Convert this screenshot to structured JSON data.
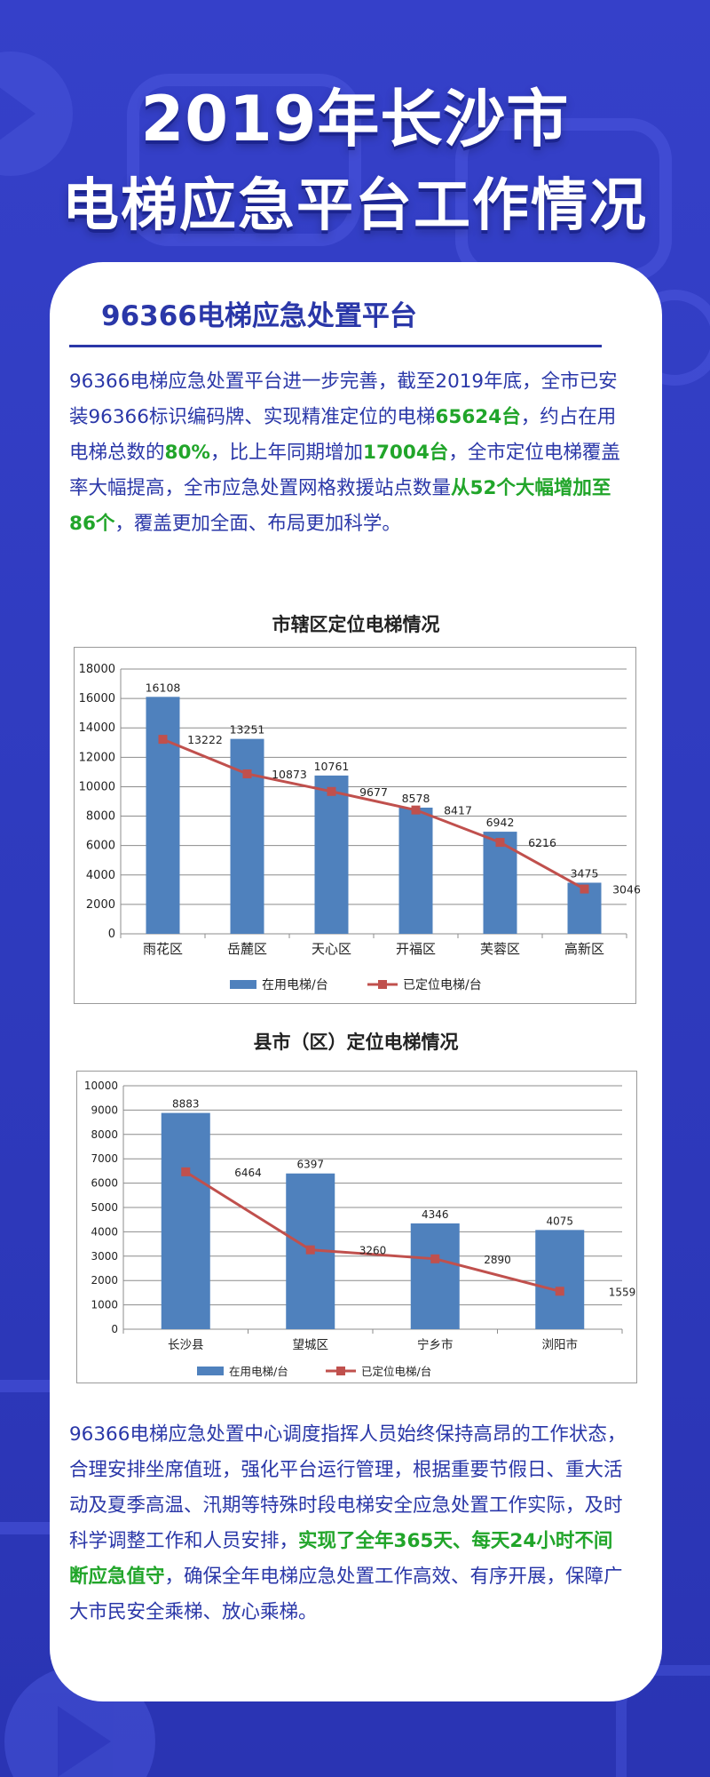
{
  "header": {
    "line1": "2019年长沙市",
    "line2": "电梯应急平台工作情况"
  },
  "section": {
    "title": "96366电梯应急处置平台"
  },
  "intro": {
    "p1": "96366电梯应急处置平台进一步完善，截至2019年底，全市已安装96366标识编码牌、实现精准定位的电梯",
    "h1": "65624台",
    "p2": "，约占在用电梯总数的",
    "h2": "80%",
    "p3": "，比上年同期增加",
    "h3": "17004台",
    "p4": "，全市定位电梯覆盖率大幅提高，全市应急处置网格救援站点数量",
    "h4": "从52个大幅增加至86个",
    "p5": "，覆盖更加全面、布局更加科学。"
  },
  "chart_data": [
    {
      "type": "bar",
      "title": "市辖区定位电梯情况",
      "categories": [
        "雨花区",
        "岳麓区",
        "天心区",
        "开福区",
        "芙蓉区",
        "高新区"
      ],
      "series": [
        {
          "name": "在用电梯/台",
          "kind": "bar",
          "color": "#4f81bd",
          "values": [
            16108,
            13251,
            10761,
            8578,
            6942,
            3475
          ]
        },
        {
          "name": "已定位电梯/台",
          "kind": "line",
          "color": "#c0504d",
          "values": [
            13222,
            10873,
            9677,
            8417,
            6216,
            3046
          ]
        }
      ],
      "ylim": [
        0,
        18000
      ],
      "yticks": [
        "0",
        "2000",
        "4000",
        "6000",
        "8000",
        "10000",
        "12000",
        "14000",
        "16000",
        "18000"
      ],
      "grid": true,
      "legend": "bottom"
    },
    {
      "type": "bar",
      "title": "县市（区）定位电梯情况",
      "categories": [
        "长沙县",
        "望城区",
        "宁乡市",
        "浏阳市"
      ],
      "series": [
        {
          "name": "在用电梯/台",
          "kind": "bar",
          "color": "#4f81bd",
          "values": [
            8883,
            6397,
            4346,
            4075
          ]
        },
        {
          "name": "已定位电梯/台",
          "kind": "line",
          "color": "#c0504d",
          "values": [
            6464,
            3260,
            2890,
            1559
          ]
        }
      ],
      "ylim": [
        0,
        10000
      ],
      "yticks": [
        "0",
        "1000",
        "2000",
        "3000",
        "4000",
        "5000",
        "6000",
        "7000",
        "8000",
        "9000",
        "10000"
      ],
      "grid": true,
      "legend": "bottom"
    }
  ],
  "outro": {
    "p1": "96366电梯应急处置中心调度指挥人员始终保持高昂的工作状态，合理安排坐席值班，强化平台运行管理，根据重要节假日、重大活动及夏季高温、汛期等特殊时段电梯安全应急处置工作实际，及时科学调整工作和人员安排，",
    "h1": "实现了全年365天、每天24小时不间断应急值守",
    "p2": "，确保全年电梯应急处置工作高效、有序开展，保障广大市民安全乘梯、放心乘梯。"
  },
  "colors": {
    "background": "#3038c0",
    "accent": "#2a37a8",
    "highlight": "#21a52a",
    "bar": "#4f81bd",
    "line": "#c0504d"
  },
  "icons": [
    "play-icon"
  ]
}
